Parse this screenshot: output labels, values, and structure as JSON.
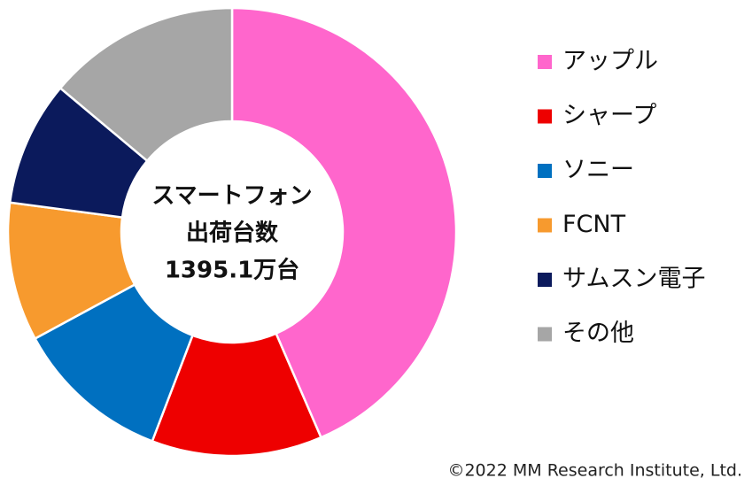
{
  "chart_data": {
    "type": "donut",
    "center_text": [
      "スマートフォン",
      "出荷台数",
      "1395.1万台"
    ],
    "categories": [
      "アップル",
      "シャープ",
      "ソニー",
      "FCNT",
      "サムスン電子",
      "その他"
    ],
    "values": [
      43.5,
      12.3,
      11.3,
      10.0,
      9.0,
      13.9
    ],
    "colors": [
      "#ff66cc",
      "#ee0000",
      "#0070c0",
      "#f79a2e",
      "#0b1a5c",
      "#a6a6a6"
    ],
    "legend": "right",
    "footnote": "©2022 MM Research Institute, Ltd."
  }
}
